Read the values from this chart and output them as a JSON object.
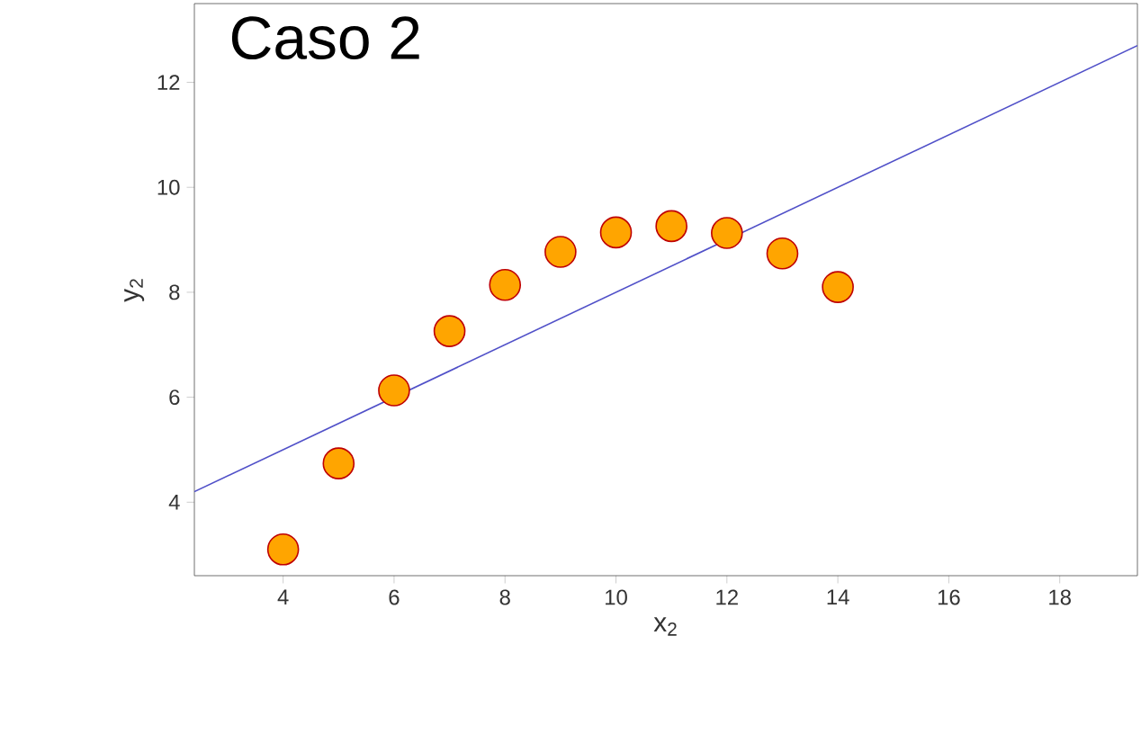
{
  "chart_data": {
    "type": "scatter",
    "title": "Caso 2",
    "xlabel": "x$_{2}$",
    "ylabel": "y$_{2}$",
    "x": [
      4,
      5,
      6,
      7,
      8,
      9,
      10,
      11,
      12,
      13,
      14
    ],
    "series": [
      {
        "color": "#ffa500",
        "marker": "circle",
        "values": [
          3.1,
          4.74,
          6.13,
          7.26,
          8.14,
          8.77,
          9.14,
          9.26,
          9.13,
          8.74,
          8.1
        ]
      },
      {
        "type": "line",
        "color": "#5050c8",
        "x": [
          2.4,
          19.4
        ],
        "values": [
          4.2,
          12.7
        ]
      }
    ],
    "xlim": [
      2.4,
      19.4
    ],
    "ylim": [
      2.6,
      13.5
    ],
    "xticks": [
      4,
      6,
      8,
      10,
      12,
      14,
      16,
      18
    ],
    "yticks": [
      4,
      6,
      8,
      10,
      12
    ],
    "grid": false
  }
}
